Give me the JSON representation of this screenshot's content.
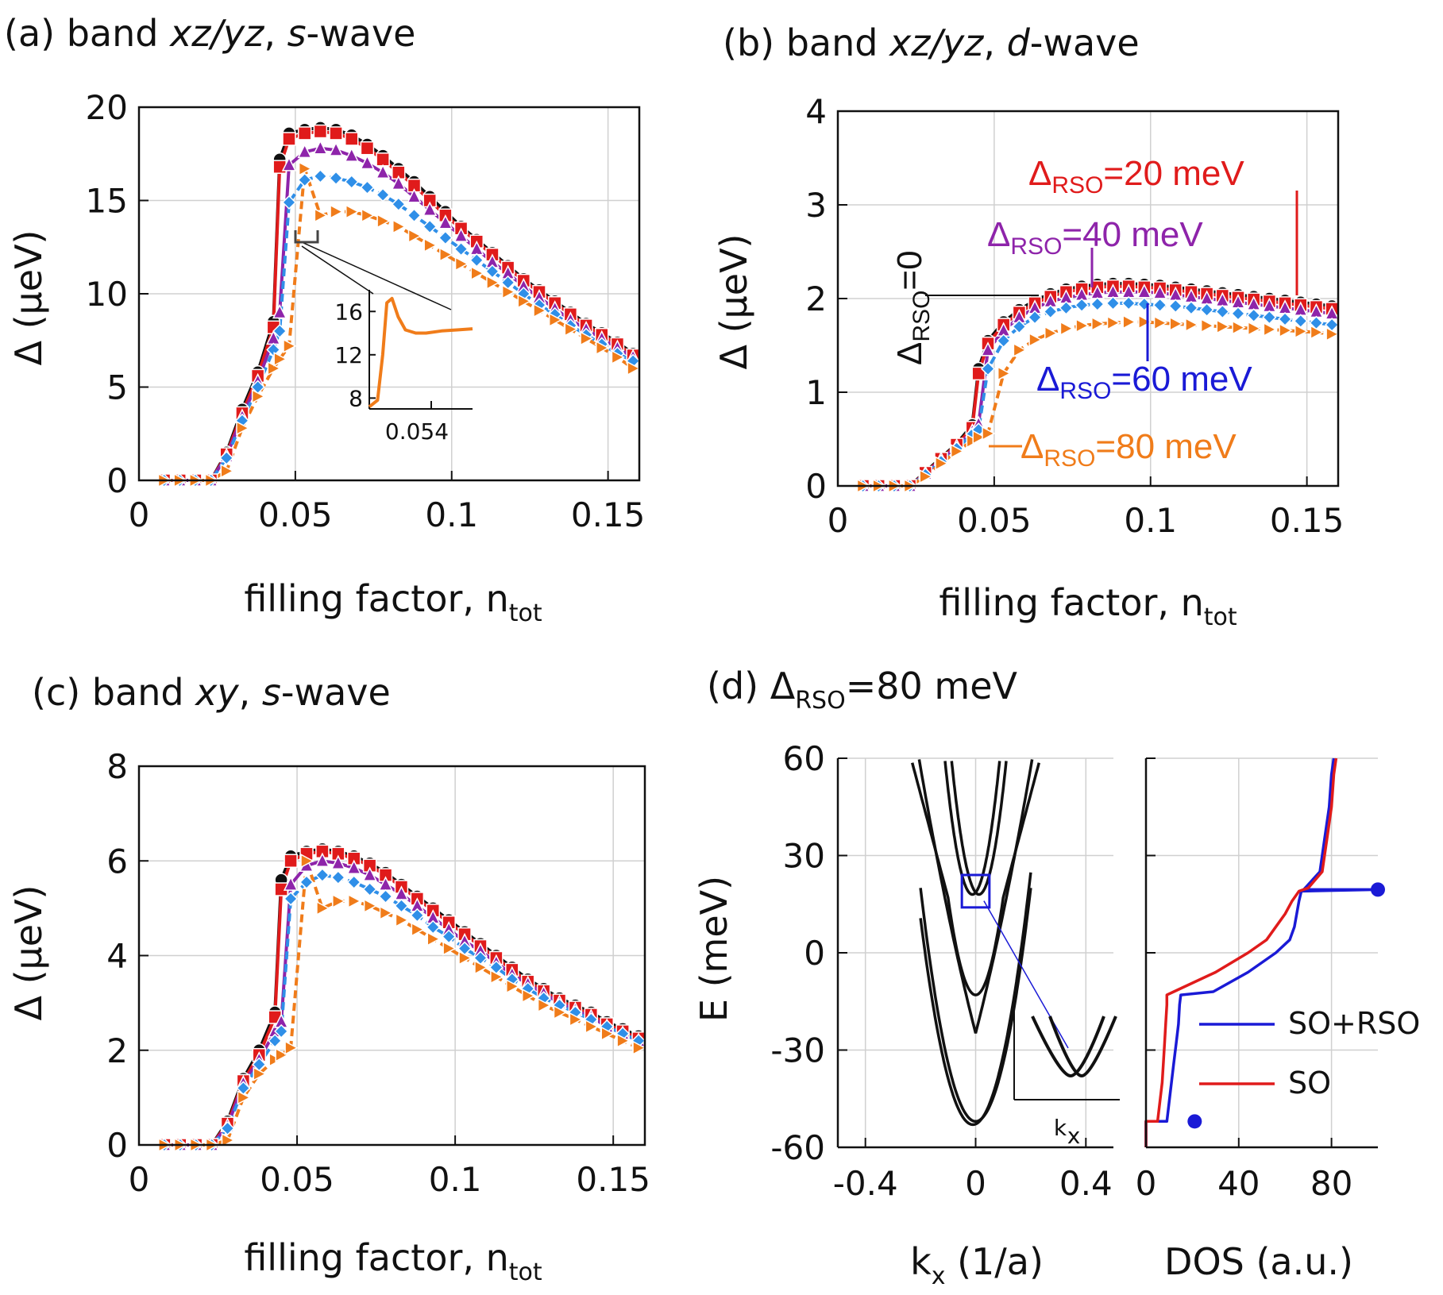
{
  "series_styles": [
    {
      "name": "ΔRSO=0",
      "color": "#111111",
      "marker": "circle",
      "dash": ""
    },
    {
      "name": "ΔRSO=20 meV",
      "color": "#e01b1b",
      "marker": "square",
      "dash": ""
    },
    {
      "name": "ΔRSO=40 meV",
      "color": "#8e24aa",
      "marker": "triangle-up",
      "dash": ""
    },
    {
      "name": "ΔRSO=60 meV",
      "color": "#2f8fe8",
      "marker": "diamond",
      "dash": "10,6"
    },
    {
      "name": "ΔRSO=80 meV",
      "color": "#f07c1a",
      "marker": "triangle-right",
      "dash": "10,6"
    }
  ],
  "chart_data": [
    {
      "id": "a",
      "type": "line",
      "title_prefix": "(a) band ",
      "title_italic": "xz/yz",
      "title_mid": ", ",
      "title_italic2": "s",
      "title_suffix": "-wave",
      "xlabel": "filling factor, n",
      "xlabel_sub": "tot",
      "ylabel": "Δ (μeV)",
      "xlim": [
        0,
        0.16
      ],
      "ylim": [
        0,
        20
      ],
      "xticks": [
        0,
        0.05,
        0.1,
        0.15
      ],
      "xtick_labels": [
        "0",
        "0.05",
        "0.1",
        "0.15"
      ],
      "yticks": [
        0,
        5,
        10,
        15,
        20
      ],
      "ytick_labels": [
        "0",
        "5",
        "10",
        "15",
        "20"
      ],
      "x": [
        0.008,
        0.013,
        0.018,
        0.023,
        0.028,
        0.033,
        0.038,
        0.043,
        0.045,
        0.048,
        0.053,
        0.058,
        0.063,
        0.068,
        0.073,
        0.078,
        0.083,
        0.088,
        0.093,
        0.098,
        0.103,
        0.108,
        0.113,
        0.118,
        0.123,
        0.128,
        0.133,
        0.138,
        0.143,
        0.148,
        0.153,
        0.158
      ],
      "series": [
        {
          "name": "ΔRSO=0",
          "values": [
            0,
            0,
            0,
            0,
            1.5,
            3.8,
            5.8,
            8.5,
            17.2,
            18.6,
            18.8,
            18.9,
            18.8,
            18.5,
            18.0,
            17.4,
            16.7,
            16.0,
            15.2,
            14.4,
            13.6,
            12.9,
            12.2,
            11.5,
            10.8,
            10.2,
            9.6,
            9.0,
            8.4,
            7.9,
            7.4,
            6.8
          ]
        },
        {
          "name": "ΔRSO=20 meV",
          "values": [
            0,
            0,
            0,
            0,
            1.4,
            3.6,
            5.6,
            8.2,
            16.8,
            18.3,
            18.6,
            18.7,
            18.6,
            18.3,
            17.8,
            17.2,
            16.5,
            15.8,
            15.0,
            14.2,
            13.5,
            12.8,
            12.1,
            11.4,
            10.7,
            10.1,
            9.5,
            8.9,
            8.3,
            7.8,
            7.3,
            6.7
          ]
        },
        {
          "name": "ΔRSO=40 meV",
          "values": [
            0,
            0,
            0,
            0,
            1.3,
            3.4,
            5.3,
            7.6,
            9.0,
            16.9,
            17.6,
            17.8,
            17.7,
            17.4,
            17.0,
            16.5,
            15.9,
            15.2,
            14.5,
            13.8,
            13.1,
            12.4,
            11.7,
            11.1,
            10.4,
            9.8,
            9.2,
            8.6,
            8.1,
            7.6,
            7.1,
            6.6
          ]
        },
        {
          "name": "ΔRSO=60 meV",
          "values": [
            0,
            0,
            0,
            0,
            1.2,
            3.2,
            5.0,
            7.0,
            8.0,
            14.9,
            16.1,
            16.3,
            16.2,
            16.0,
            15.7,
            15.3,
            14.8,
            14.2,
            13.6,
            13.0,
            12.4,
            11.8,
            11.2,
            10.6,
            10.0,
            9.4,
            8.9,
            8.3,
            7.8,
            7.3,
            6.8,
            6.4
          ]
        },
        {
          "name": "ΔRSO=80 meV",
          "values": [
            0,
            0,
            0,
            0,
            0.5,
            2.8,
            4.5,
            6.0,
            6.5,
            7.2,
            16.7,
            14.2,
            14.4,
            14.4,
            14.2,
            13.9,
            13.6,
            13.1,
            12.6,
            12.1,
            11.6,
            11.1,
            10.6,
            10.1,
            9.6,
            9.1,
            8.6,
            8.1,
            7.6,
            7.1,
            6.6,
            6.0
          ]
        }
      ],
      "inset": {
        "xtick_label": "0.054",
        "yticks": [
          8,
          12,
          16
        ],
        "ytick_labels": [
          "8",
          "12",
          "16"
        ],
        "ylim": [
          7,
          18
        ],
        "x": [
          0,
          0.08,
          0.13,
          0.17,
          0.22,
          0.28,
          0.35,
          0.45,
          0.55,
          0.7,
          0.85,
          1.0
        ],
        "values": [
          7.2,
          7.8,
          12.0,
          16.8,
          17.2,
          15.5,
          14.3,
          14.0,
          14.0,
          14.2,
          14.3,
          14.4
        ]
      }
    },
    {
      "id": "b",
      "type": "line",
      "title_prefix": "(b) band ",
      "title_italic": "xz/yz",
      "title_mid": ", ",
      "title_italic2": "d",
      "title_suffix": "-wave",
      "xlabel": "filling factor, n",
      "xlabel_sub": "tot",
      "ylabel": "Δ (μeV)",
      "xlim": [
        0,
        0.16
      ],
      "ylim": [
        0,
        4
      ],
      "xticks": [
        0,
        0.05,
        0.1,
        0.15
      ],
      "xtick_labels": [
        "0",
        "0.05",
        "0.1",
        "0.15"
      ],
      "yticks": [
        0,
        1,
        2,
        3,
        4
      ],
      "ytick_labels": [
        "0",
        "1",
        "2",
        "3",
        "4"
      ],
      "x": [
        0.008,
        0.013,
        0.018,
        0.023,
        0.028,
        0.033,
        0.038,
        0.043,
        0.045,
        0.048,
        0.053,
        0.058,
        0.063,
        0.068,
        0.073,
        0.078,
        0.083,
        0.088,
        0.093,
        0.098,
        0.103,
        0.108,
        0.113,
        0.118,
        0.123,
        0.128,
        0.133,
        0.138,
        0.143,
        0.148,
        0.153,
        0.158
      ],
      "series": [
        {
          "name": "ΔRSO=0",
          "values": [
            0,
            0,
            0,
            0,
            0.15,
            0.3,
            0.45,
            0.65,
            1.25,
            1.55,
            1.75,
            1.88,
            1.98,
            2.05,
            2.1,
            2.13,
            2.15,
            2.16,
            2.16,
            2.15,
            2.14,
            2.12,
            2.1,
            2.08,
            2.06,
            2.04,
            2.02,
            2.0,
            1.98,
            1.96,
            1.94,
            1.92
          ]
        },
        {
          "name": "ΔRSO=20 meV",
          "values": [
            0,
            0,
            0,
            0,
            0.14,
            0.29,
            0.44,
            0.62,
            1.2,
            1.52,
            1.72,
            1.85,
            1.95,
            2.02,
            2.07,
            2.1,
            2.12,
            2.13,
            2.13,
            2.12,
            2.11,
            2.09,
            2.07,
            2.05,
            2.03,
            2.01,
            1.99,
            1.97,
            1.95,
            1.93,
            1.91,
            1.89
          ]
        },
        {
          "name": "ΔRSO=40 meV",
          "values": [
            0,
            0,
            0,
            0,
            0.13,
            0.28,
            0.42,
            0.58,
            0.66,
            1.45,
            1.66,
            1.8,
            1.9,
            1.97,
            2.01,
            2.04,
            2.06,
            2.07,
            2.07,
            2.07,
            2.06,
            2.04,
            2.02,
            2.0,
            1.98,
            1.96,
            1.94,
            1.92,
            1.9,
            1.88,
            1.86,
            1.84
          ]
        },
        {
          "name": "ΔRSO=60 meV",
          "values": [
            0,
            0,
            0,
            0,
            0.12,
            0.26,
            0.4,
            0.55,
            0.6,
            1.25,
            1.55,
            1.7,
            1.8,
            1.86,
            1.9,
            1.93,
            1.94,
            1.95,
            1.95,
            1.94,
            1.93,
            1.92,
            1.9,
            1.88,
            1.86,
            1.84,
            1.82,
            1.8,
            1.78,
            1.76,
            1.74,
            1.72
          ]
        },
        {
          "name": "ΔRSO=80 meV",
          "values": [
            0,
            0,
            0,
            0,
            0.1,
            0.24,
            0.37,
            0.48,
            0.52,
            0.56,
            1.2,
            1.45,
            1.56,
            1.63,
            1.68,
            1.71,
            1.73,
            1.74,
            1.75,
            1.75,
            1.74,
            1.73,
            1.72,
            1.71,
            1.7,
            1.69,
            1.68,
            1.67,
            1.66,
            1.65,
            1.64,
            1.62
          ]
        }
      ],
      "annotations": {
        "a0_prefix": "Δ",
        "a0_sub": "RSO",
        "a0_suffix": "=0",
        "a20_prefix": "Δ",
        "a20_sub": "RSO",
        "a20_suffix": "=20 meV",
        "a40_prefix": "Δ",
        "a40_sub": "RSO",
        "a40_suffix": "=40 meV",
        "a60_prefix": "Δ",
        "a60_sub": "RSO",
        "a60_suffix": "=60 meV",
        "a80_prefix": "Δ",
        "a80_sub": "RSO",
        "a80_suffix": "=80 meV"
      }
    },
    {
      "id": "c",
      "type": "line",
      "title_prefix": "(c) band ",
      "title_italic": "xy",
      "title_mid": ", ",
      "title_italic2": "s",
      "title_suffix": "-wave",
      "xlabel": "filling factor, n",
      "xlabel_sub": "tot",
      "ylabel": "Δ (μeV)",
      "xlim": [
        0,
        0.16
      ],
      "ylim": [
        0,
        8
      ],
      "xticks": [
        0,
        0.05,
        0.1,
        0.15
      ],
      "xtick_labels": [
        "0",
        "0.05",
        "0.1",
        "0.15"
      ],
      "yticks": [
        0,
        2,
        4,
        6,
        8
      ],
      "ytick_labels": [
        "0",
        "2",
        "4",
        "6",
        "8"
      ],
      "x": [
        0.008,
        0.013,
        0.018,
        0.023,
        0.028,
        0.033,
        0.038,
        0.043,
        0.045,
        0.048,
        0.053,
        0.058,
        0.063,
        0.068,
        0.073,
        0.078,
        0.083,
        0.088,
        0.093,
        0.098,
        0.103,
        0.108,
        0.113,
        0.118,
        0.123,
        0.128,
        0.133,
        0.138,
        0.143,
        0.148,
        0.153,
        0.158
      ],
      "series": [
        {
          "name": "ΔRSO=0",
          "values": [
            0,
            0,
            0,
            0,
            0.5,
            1.4,
            2.0,
            2.8,
            5.6,
            6.1,
            6.2,
            6.25,
            6.2,
            6.1,
            5.95,
            5.75,
            5.5,
            5.25,
            5.0,
            4.75,
            4.5,
            4.25,
            4.0,
            3.75,
            3.5,
            3.3,
            3.1,
            2.95,
            2.8,
            2.6,
            2.45,
            2.3
          ]
        },
        {
          "name": "ΔRSO=20 meV",
          "values": [
            0,
            0,
            0,
            0,
            0.45,
            1.35,
            1.9,
            2.7,
            5.4,
            6.0,
            6.15,
            6.2,
            6.15,
            6.05,
            5.9,
            5.7,
            5.45,
            5.2,
            4.95,
            4.7,
            4.45,
            4.2,
            3.95,
            3.7,
            3.45,
            3.25,
            3.05,
            2.9,
            2.75,
            2.55,
            2.4,
            2.25
          ]
        },
        {
          "name": "ΔRSO=40 meV",
          "values": [
            0,
            0,
            0,
            0,
            0.4,
            1.3,
            1.8,
            2.4,
            2.6,
            5.5,
            5.9,
            6.0,
            5.95,
            5.85,
            5.7,
            5.5,
            5.3,
            5.05,
            4.8,
            4.55,
            4.3,
            4.1,
            3.85,
            3.6,
            3.4,
            3.2,
            3.0,
            2.85,
            2.7,
            2.5,
            2.35,
            2.2
          ]
        },
        {
          "name": "ΔRSO=60 meV",
          "values": [
            0,
            0,
            0,
            0,
            0.35,
            1.2,
            1.7,
            2.2,
            2.4,
            5.2,
            5.55,
            5.7,
            5.65,
            5.55,
            5.4,
            5.25,
            5.05,
            4.85,
            4.6,
            4.4,
            4.15,
            3.95,
            3.75,
            3.5,
            3.3,
            3.1,
            2.95,
            2.8,
            2.65,
            2.5,
            2.35,
            2.2
          ]
        },
        {
          "name": "ΔRSO=80 meV",
          "values": [
            0,
            0,
            0,
            0,
            0.1,
            1.0,
            1.5,
            1.8,
            1.9,
            2.05,
            6.0,
            5.0,
            5.15,
            5.15,
            5.05,
            4.9,
            4.75,
            4.55,
            4.35,
            4.15,
            3.95,
            3.75,
            3.55,
            3.35,
            3.15,
            2.95,
            2.8,
            2.65,
            2.5,
            2.35,
            2.2,
            2.05
          ]
        }
      ]
    },
    {
      "id": "d",
      "type": "line",
      "title_prefix": "(d) ",
      "title_delta": "Δ",
      "title_sub": "RSO",
      "title_suffix": "=80 meV",
      "band": {
        "xlabel": "k",
        "xlabel_sub": "x",
        "xlabel_suffix": " (1/a)",
        "ylabel": "E (meV)",
        "xlim": [
          -0.5,
          0.5
        ],
        "ylim": [
          -60,
          60
        ],
        "xticks": [
          -0.4,
          0,
          0.4
        ],
        "xtick_labels": [
          "-0.4",
          "0",
          "0.4"
        ],
        "yticks": [
          -60,
          -30,
          0,
          30,
          60
        ],
        "ytick_labels": [
          "-60",
          "-30",
          "0",
          "30",
          "60"
        ],
        "inset_xlabel": "k",
        "inset_xlabel_sub": "x"
      },
      "dos": {
        "xlabel": "DOS (a.u.)",
        "xlim": [
          0,
          100
        ],
        "ylim": [
          -60,
          60
        ],
        "xticks": [
          0,
          40,
          80
        ],
        "xtick_labels": [
          "0",
          "40",
          "80"
        ],
        "legend": [
          {
            "label": "SO+RSO",
            "color": "#1a1ad6"
          },
          {
            "label": "SO",
            "color": "#e01b1b"
          }
        ],
        "series": [
          {
            "name": "SO+RSO",
            "color": "#1a1ad6",
            "E": [
              -60,
              -52,
              -52,
              -46,
              -40,
              -34,
              -28,
              -22,
              -16,
              -13,
              -12,
              -6,
              0,
              4,
              8,
              12,
              16,
              19,
              19.5,
              19.5,
              25,
              35,
              45,
              55,
              60
            ],
            "dos": [
              0,
              0,
              9,
              10,
              11,
              12,
              13,
              14,
              14.5,
              15,
              29,
              44,
              56,
              62,
              64,
              65,
              66,
              67,
              100,
              68,
              75,
              77,
              79,
              80,
              81
            ]
          },
          {
            "name": "SO",
            "color": "#e01b1b",
            "E": [
              -60,
              -52,
              -52,
              -46,
              -40,
              -34,
              -28,
              -22,
              -16,
              -13,
              -12,
              -6,
              0,
              4,
              8,
              12,
              16,
              19,
              20,
              25,
              35,
              45,
              55,
              60
            ],
            "dos": [
              0,
              0,
              5,
              6,
              7,
              7.5,
              8,
              8.5,
              9,
              9,
              12,
              30,
              44,
              52,
              56,
              60,
              63,
              66,
              70,
              76,
              78,
              80,
              81,
              82
            ]
          }
        ],
        "markers": [
          {
            "E": -52,
            "dos": 21
          },
          {
            "E": 19.5,
            "dos": 100
          }
        ]
      }
    }
  ]
}
